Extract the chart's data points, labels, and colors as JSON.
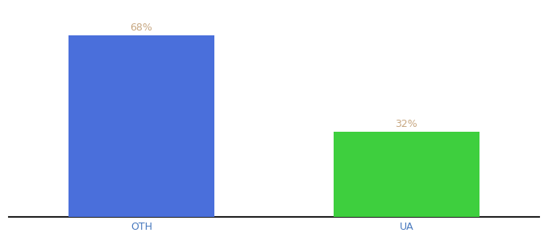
{
  "categories": [
    "OTH",
    "UA"
  ],
  "values": [
    68,
    32
  ],
  "bar_colors": [
    "#4a6fdb",
    "#3ecf3e"
  ],
  "label_color": "#c8a882",
  "label_fontsize": 9,
  "xlabel_fontsize": 9,
  "xlabel_color": "#4a7abf",
  "ylim": [
    0,
    78
  ],
  "background_color": "#ffffff",
  "bar_width": 0.55,
  "spine_color": "#222222",
  "xlim": [
    -0.5,
    1.5
  ]
}
